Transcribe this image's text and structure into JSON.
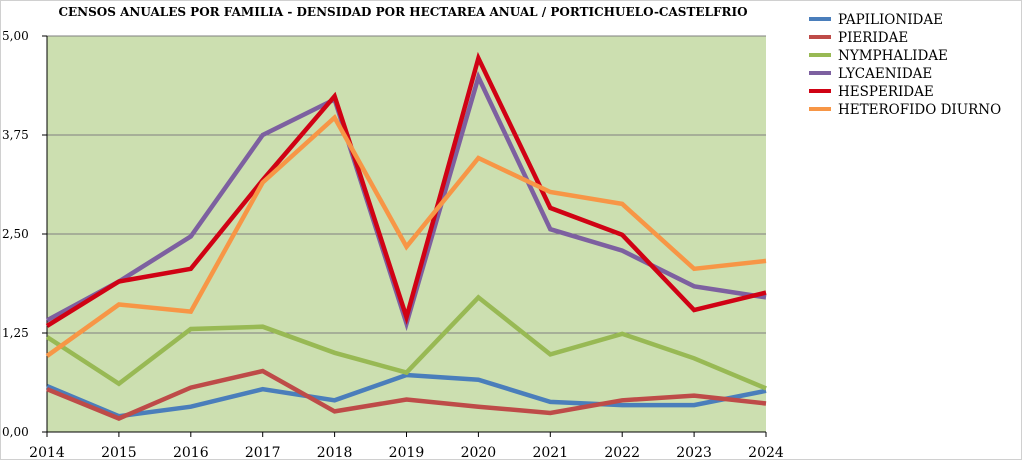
{
  "chart_data": {
    "type": "line",
    "title": "CENSOS ANUALES POR FAMILIA - DENSIDAD POR HECTAREA ANUAL / PORTICHUELO-CASTELFRIO",
    "xlabel": "",
    "ylabel": "",
    "x": [
      "2014",
      "2015",
      "2016",
      "2017",
      "2018",
      "2019",
      "2020",
      "2021",
      "2022",
      "2023",
      "2024"
    ],
    "yticks": [
      "0,00",
      "1,25",
      "2,50",
      "3,75",
      "5,00"
    ],
    "ylim": [
      0,
      5
    ],
    "grid": true,
    "plot_background": "#ccdfb0",
    "legend_position": "right",
    "series": [
      {
        "name": "PAPILIONIDAE",
        "color": "#4a7ebb",
        "values": [
          0.58,
          0.2,
          0.32,
          0.54,
          0.4,
          0.72,
          0.66,
          0.38,
          0.34,
          0.34,
          0.52
        ]
      },
      {
        "name": "PIERIDAE",
        "color": "#be4b48",
        "values": [
          0.54,
          0.17,
          0.56,
          0.77,
          0.26,
          0.41,
          0.32,
          0.24,
          0.4,
          0.46,
          0.36
        ]
      },
      {
        "name": "NYMPHALIDAE",
        "color": "#98b954",
        "values": [
          1.2,
          0.61,
          1.3,
          1.33,
          1.0,
          0.75,
          1.7,
          0.98,
          1.24,
          0.93,
          0.55
        ]
      },
      {
        "name": "LYCAENIDAE",
        "color": "#7d60a0",
        "values": [
          1.41,
          1.9,
          2.47,
          3.75,
          4.2,
          1.37,
          4.48,
          2.56,
          2.29,
          1.84,
          1.7
        ]
      },
      {
        "name": "HESPERIDAE",
        "color": "#d00214",
        "values": [
          1.34,
          1.9,
          2.06,
          3.18,
          4.24,
          1.45,
          4.72,
          2.83,
          2.49,
          1.54,
          1.76
        ]
      },
      {
        "name": "HETEROFIDO DIURNO",
        "color": "#f79646",
        "values": [
          0.96,
          1.61,
          1.52,
          3.15,
          3.97,
          2.34,
          3.46,
          3.03,
          2.88,
          2.06,
          2.16
        ]
      }
    ]
  }
}
